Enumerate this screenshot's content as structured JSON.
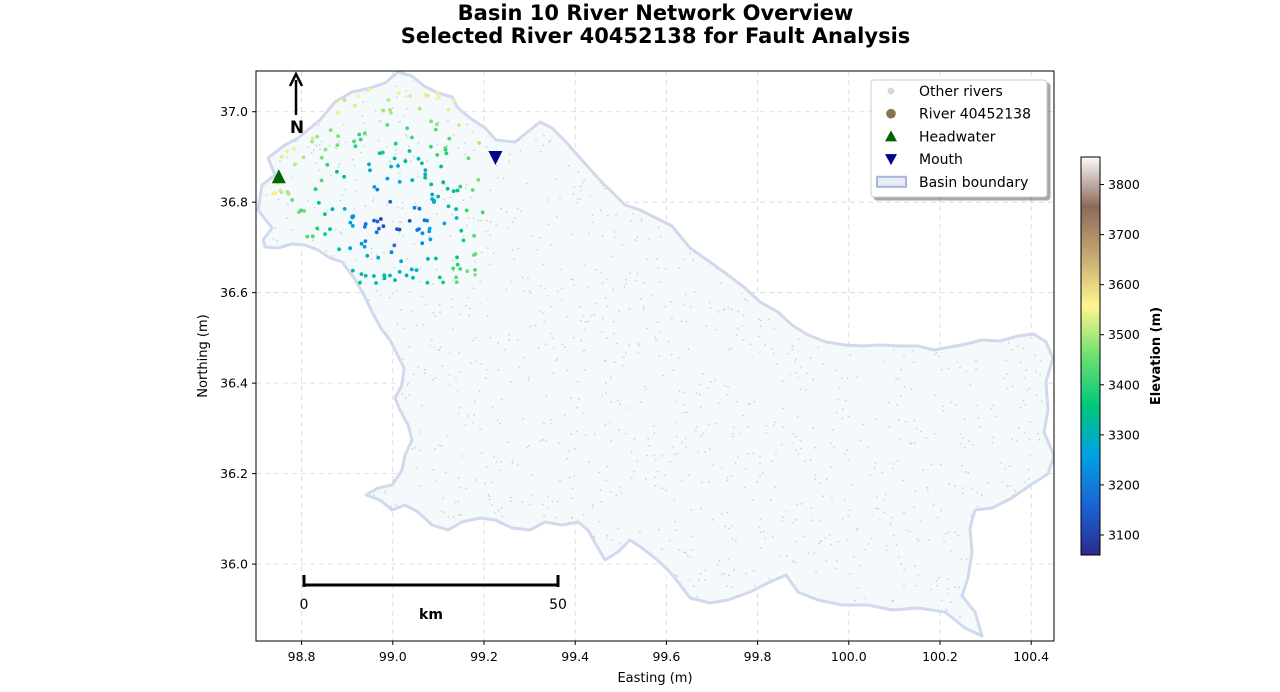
{
  "title_line1": "Basin 10 River Network Overview",
  "title_line2": "Selected River 40452138 for Fault Analysis",
  "chart_data": {
    "type": "scatter",
    "xlabel": "Easting (m)",
    "ylabel": "Northing (m)",
    "xlim": [
      98.7,
      100.45
    ],
    "ylim": [
      35.83,
      37.09
    ],
    "xticks": [
      "98.8",
      "99.0",
      "99.2",
      "99.4",
      "99.6",
      "99.8",
      "100.0",
      "100.2",
      "100.4"
    ],
    "yticks": [
      "36.0",
      "36.2",
      "36.4",
      "36.6",
      "36.8",
      "37.0"
    ],
    "grid": true,
    "legend_position": "top-right",
    "legend": [
      {
        "label": "Other rivers",
        "color": "#d9d9d9",
        "marker": "circle"
      },
      {
        "label": "River 40452138",
        "color": "#8c7254",
        "marker": "circle"
      },
      {
        "label": "Headwater",
        "color": "#006400",
        "marker": "triangle-up"
      },
      {
        "label": "Mouth",
        "color": "#00008b",
        "marker": "triangle-down"
      },
      {
        "label": "Basin boundary",
        "color": "#a8b4d8",
        "marker": "rectangle"
      }
    ],
    "headwater": {
      "x": 98.75,
      "y": 36.855
    },
    "mouth": {
      "x": 99.225,
      "y": 36.9
    },
    "colorbar": {
      "label": "Elevation (m)",
      "range": [
        3060,
        3855
      ],
      "ticks": [
        "3100",
        "3200",
        "3300",
        "3400",
        "3500",
        "3600",
        "3700",
        "3800"
      ],
      "colormap": [
        "#2b2b8a",
        "#1a64d6",
        "#00a0e6",
        "#00c878",
        "#6ee070",
        "#fff590",
        "#c6aa72",
        "#8c6a5a",
        "#fafafa"
      ]
    },
    "north_arrow": {
      "label": "N"
    },
    "scale_bar": {
      "start_label": "0",
      "end_label": "50",
      "unit": "km"
    }
  }
}
